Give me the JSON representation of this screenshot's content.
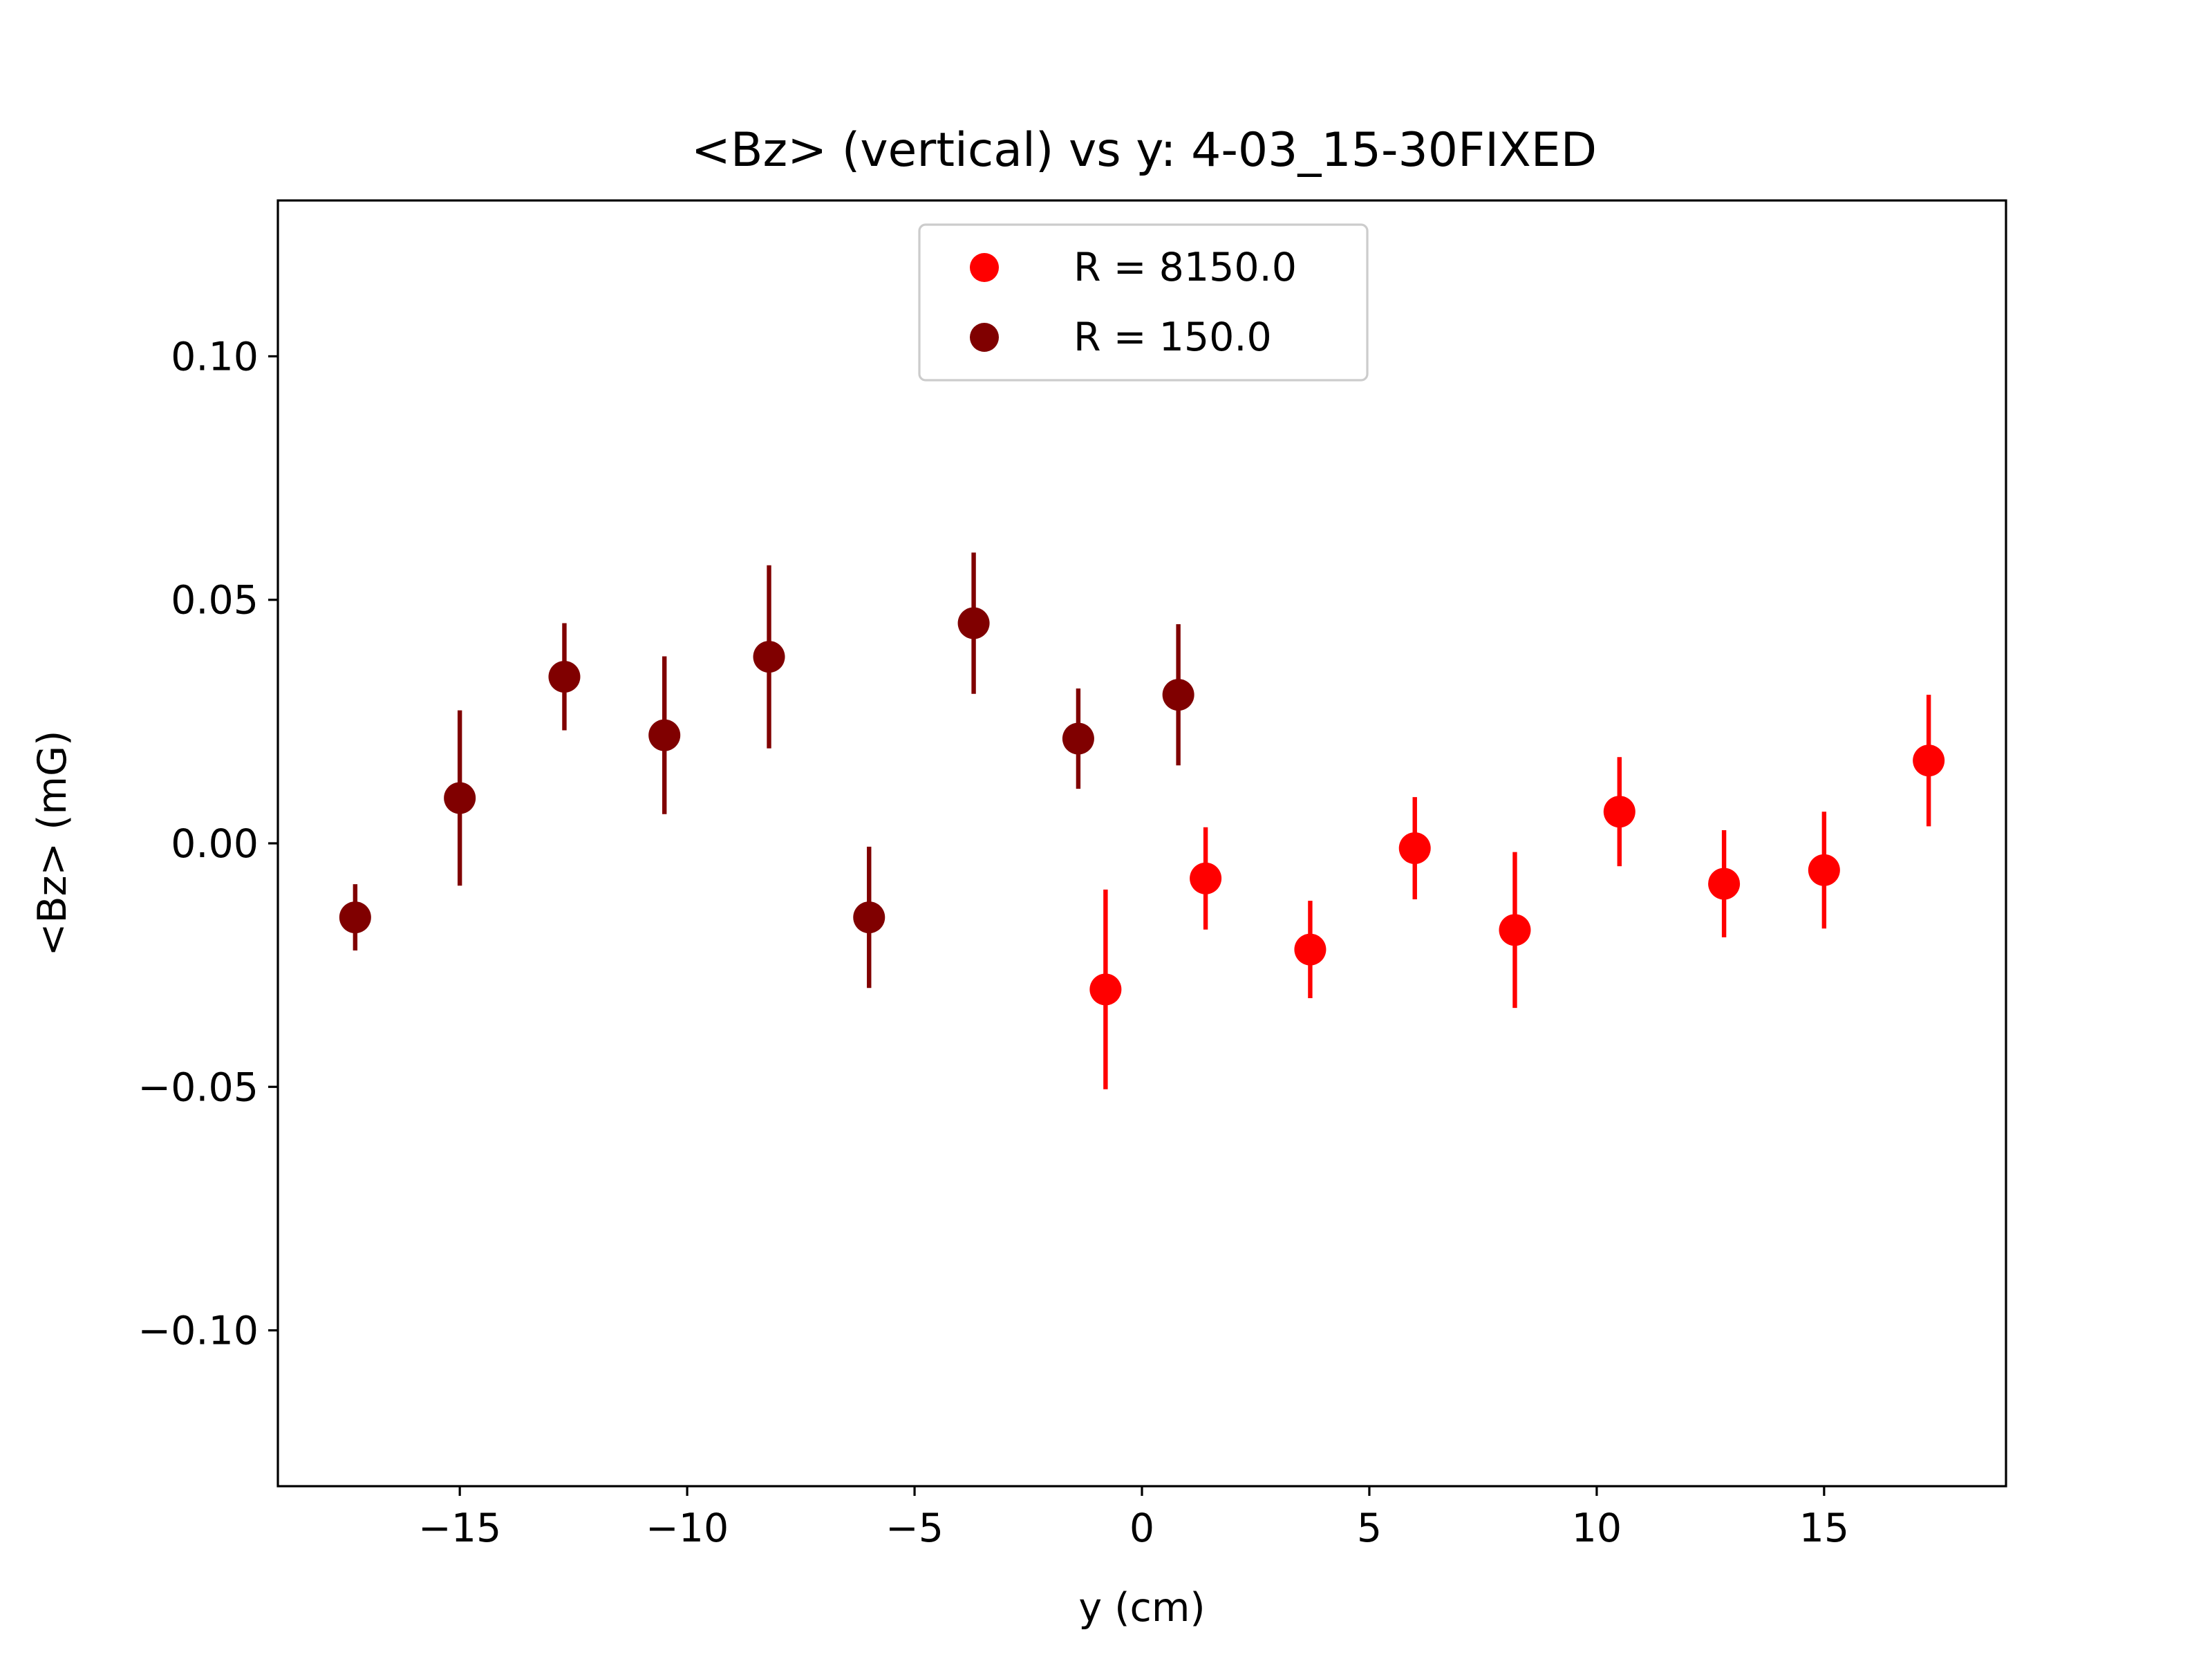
{
  "chart_data": {
    "type": "scatter",
    "title": "<Bz> (vertical) vs y: 4-03_15-30FIXED",
    "xlabel": "y (cm)",
    "ylabel": "<Bz> (mG)",
    "xlim": [
      -19,
      19
    ],
    "ylim": [
      -0.132,
      0.132
    ],
    "xticks": [
      -15,
      -10,
      -5,
      0,
      5,
      10,
      15
    ],
    "xtick_labels": [
      "−15",
      "−10",
      "−5",
      "0",
      "5",
      "10",
      "15"
    ],
    "yticks": [
      0.1,
      0.05,
      0.0,
      -0.05,
      -0.1
    ],
    "ytick_labels": [
      "0.10",
      "0.05",
      "0.00",
      "−0.05",
      "−0.10"
    ],
    "grid": false,
    "legend_position": "top-center",
    "series": [
      {
        "name": "R = 8150.0",
        "color": "#ff0000",
        "points": [
          {
            "x": -0.8,
            "y": -0.03,
            "err": 0.0205
          },
          {
            "x": 1.4,
            "y": -0.0072,
            "err": 0.0105
          },
          {
            "x": 3.7,
            "y": -0.0218,
            "err": 0.01
          },
          {
            "x": 6.0,
            "y": -0.001,
            "err": 0.0105
          },
          {
            "x": 8.2,
            "y": -0.0178,
            "err": 0.016
          },
          {
            "x": 10.5,
            "y": 0.0065,
            "err": 0.0112
          },
          {
            "x": 12.8,
            "y": -0.0083,
            "err": 0.011
          },
          {
            "x": 15.0,
            "y": -0.0055,
            "err": 0.012
          },
          {
            "x": 17.3,
            "y": 0.017,
            "err": 0.0135
          }
        ]
      },
      {
        "name": "R = 150.0",
        "color": "#800000",
        "points": [
          {
            "x": -17.3,
            "y": -0.0152,
            "err": 0.0068
          },
          {
            "x": -15.0,
            "y": 0.0093,
            "err": 0.018
          },
          {
            "x": -12.7,
            "y": 0.0342,
            "err": 0.011
          },
          {
            "x": -10.5,
            "y": 0.0222,
            "err": 0.0162
          },
          {
            "x": -8.2,
            "y": 0.0383,
            "err": 0.0188
          },
          {
            "x": -6.0,
            "y": -0.0152,
            "err": 0.0145
          },
          {
            "x": -3.7,
            "y": 0.0452,
            "err": 0.0145
          },
          {
            "x": -1.4,
            "y": 0.0215,
            "err": 0.0103
          },
          {
            "x": 0.8,
            "y": 0.0305,
            "err": 0.0145
          }
        ]
      }
    ]
  }
}
